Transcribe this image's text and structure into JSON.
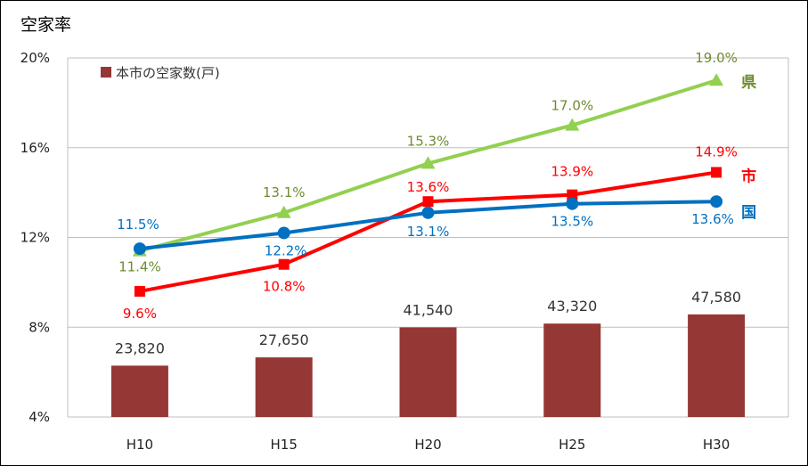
{
  "chart_data": {
    "type": "bar+line",
    "title": "空家率",
    "categories": [
      "H10",
      "H15",
      "H20",
      "H25",
      "H30"
    ],
    "bars": {
      "name": "本市の空家数(戸)",
      "color": "#953735",
      "values": [
        23820,
        27650,
        41540,
        43320,
        47580
      ],
      "labels": [
        "23,820",
        "27,650",
        "41,540",
        "43,320",
        "47,580"
      ]
    },
    "series": [
      {
        "name": "県",
        "color": "#92D050",
        "label_color": "#6E8C2F",
        "marker": "triangle",
        "values": [
          11.4,
          13.1,
          15.3,
          17.0,
          19.0
        ],
        "labels": [
          "11.4%",
          "13.1%",
          "15.3%",
          "17.0%",
          "19.0%"
        ]
      },
      {
        "name": "市",
        "color": "#FF0000",
        "label_color": "#FF0000",
        "marker": "square",
        "values": [
          9.6,
          10.8,
          13.6,
          13.9,
          14.9
        ],
        "labels": [
          "9.6%",
          "10.8%",
          "13.6%",
          "13.9%",
          "14.9%"
        ]
      },
      {
        "name": "国",
        "color": "#0070C0",
        "label_color": "#0070C0",
        "marker": "circle",
        "values": [
          11.5,
          12.2,
          13.1,
          13.5,
          13.6
        ],
        "labels": [
          "11.5%",
          "12.2%",
          "13.1%",
          "13.5%",
          "13.6%"
        ]
      }
    ],
    "yaxis": {
      "ylim": [
        4,
        20
      ],
      "ticks": [
        4,
        8,
        12,
        16,
        20
      ],
      "tick_labels": [
        "4%",
        "8%",
        "12%",
        "16%",
        "20%"
      ]
    },
    "grid": true,
    "legend": {
      "position": "top-left"
    }
  }
}
